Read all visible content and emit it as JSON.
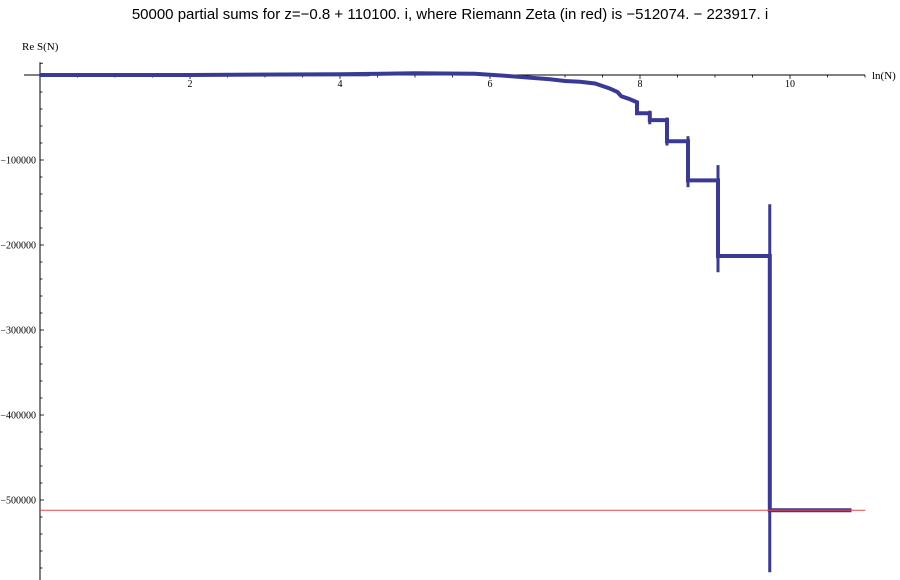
{
  "chart_data": {
    "type": "line",
    "title": "50000 partial sums for z=−0.8 + 110100. i, where Riemann Zeta (in red) is −512074. − 223917. i",
    "xlabel": "ln(N)",
    "ylabel": "Re S(N)",
    "xlim": [
      0,
      11
    ],
    "ylim": [
      -594000,
      15000
    ],
    "x_ticks": [
      2,
      4,
      6,
      8,
      10
    ],
    "y_ticks": [
      -100000,
      -200000,
      -300000,
      -400000,
      -500000
    ],
    "y_tick_labels": [
      "−100000",
      "−200000",
      "−300000",
      "−400000",
      "−500000"
    ],
    "grid": false,
    "series": [
      {
        "color": "#3a3a96",
        "points": [
          [
            0,
            0
          ],
          [
            2,
            0
          ],
          [
            4,
            1000
          ],
          [
            5,
            2000
          ],
          [
            5.8,
            1500
          ],
          [
            6.2,
            -1000
          ],
          [
            6.5,
            -3000
          ],
          [
            6.8,
            -5000
          ],
          [
            7.0,
            -7000
          ],
          [
            7.2,
            -8000
          ],
          [
            7.4,
            -10000
          ],
          [
            7.5,
            -13000
          ],
          [
            7.6,
            -16000
          ],
          [
            7.7,
            -20000
          ],
          [
            7.75,
            -25000
          ],
          [
            7.85,
            -28000
          ],
          [
            7.96,
            -32000
          ],
          [
            7.96,
            -45000
          ],
          [
            8.13,
            -45000
          ],
          [
            8.13,
            -53000
          ],
          [
            8.36,
            -53000
          ],
          [
            8.36,
            -78000
          ],
          [
            8.64,
            -78000
          ],
          [
            8.64,
            -124000
          ],
          [
            9.04,
            -124000
          ],
          [
            9.04,
            -213000
          ],
          [
            9.73,
            -213000
          ],
          [
            9.73,
            -512000
          ],
          [
            10.82,
            -512000
          ]
        ],
        "oscillation_extents": [
          [
            8.13,
            -42000,
            -58000
          ],
          [
            8.36,
            -50000,
            -83000
          ],
          [
            8.64,
            -72000,
            -132000
          ],
          [
            9.04,
            -106000,
            -232000
          ],
          [
            9.73,
            -152000,
            -585000
          ]
        ]
      }
    ],
    "reference_line": {
      "y": -512074,
      "color": "#e8454a"
    }
  }
}
